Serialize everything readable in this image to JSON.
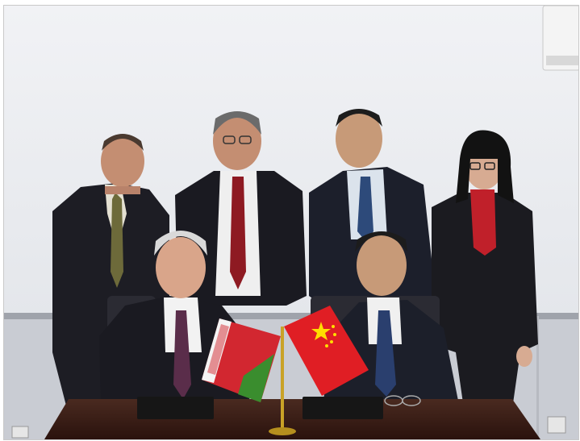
{
  "image": {
    "kind": "photograph",
    "subject": "group-photo-at-signing-table",
    "people_standing": 4,
    "people_seated": 2,
    "flags": [
      "belarus-flag",
      "china-flag"
    ]
  },
  "colors": {
    "wall": "#e9ebef",
    "wall_lower": "#c8cbd2",
    "table": "#3a1d16",
    "suit": "#1b1b22",
    "shirt_white": "#f2f2f2",
    "red_tie": "#8e1a22",
    "belarus_red": "#d22730",
    "belarus_green": "#3a8d2e",
    "china_red": "#e01e24",
    "china_yellow": "#ffde00"
  }
}
